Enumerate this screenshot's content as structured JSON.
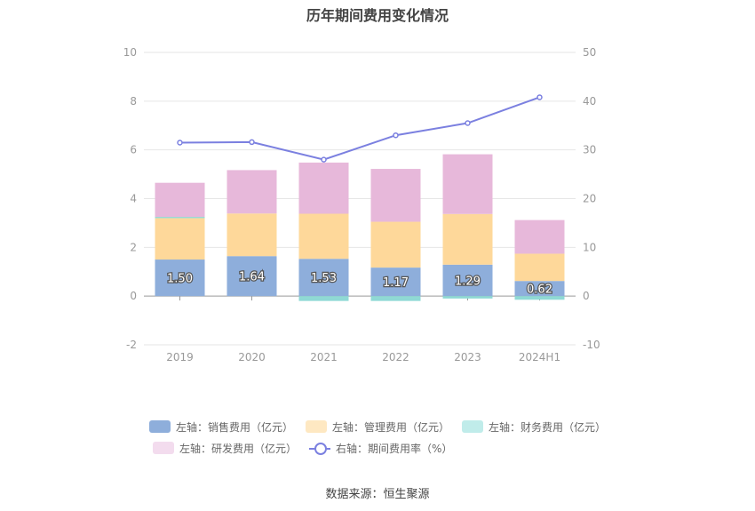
{
  "title": "历年期间费用变化情况",
  "source": "数据来源：恒生聚源",
  "chart_data": {
    "type": "bar",
    "stacked": true,
    "categories": [
      "2019",
      "2020",
      "2021",
      "2022",
      "2023",
      "2024H1"
    ],
    "left_axis": {
      "ticks": [
        "-2",
        "0",
        "2",
        "4",
        "6",
        "8",
        "10"
      ],
      "min": -2,
      "max": 10
    },
    "right_axis": {
      "ticks": [
        "-10",
        "0",
        "10",
        "20",
        "30",
        "40",
        "50"
      ],
      "min": -10,
      "max": 50
    },
    "series": [
      {
        "name": "左轴：销售费用（亿元）",
        "axis": "left",
        "color": "#8eaedb",
        "values": [
          1.5,
          1.64,
          1.53,
          1.17,
          1.29,
          0.62
        ],
        "labels": [
          "1.50",
          "1.64",
          "1.53",
          "1.17",
          "1.29",
          "0.62"
        ]
      },
      {
        "name": "左轴：管理费用（亿元）",
        "axis": "left",
        "color": "#fed89a",
        "values": [
          1.7,
          1.75,
          1.85,
          1.88,
          2.08,
          1.12
        ]
      },
      {
        "name": "左轴：财务费用（亿元）",
        "axis": "left",
        "color": "#8fd9d5",
        "values": [
          0.05,
          0.0,
          -0.2,
          -0.2,
          -0.1,
          -0.15
        ]
      },
      {
        "name": "左轴：研发费用（亿元）",
        "axis": "left",
        "color": "#e7b8da",
        "values": [
          1.4,
          1.78,
          2.1,
          2.17,
          2.45,
          1.38
        ]
      },
      {
        "name": "右轴：期间费用率（%）",
        "axis": "right",
        "type": "line",
        "color": "#7b80e0",
        "values": [
          31.5,
          31.6,
          28.0,
          33.0,
          35.5,
          40.8
        ]
      }
    ],
    "grid": true,
    "legend_position": "bottom"
  }
}
